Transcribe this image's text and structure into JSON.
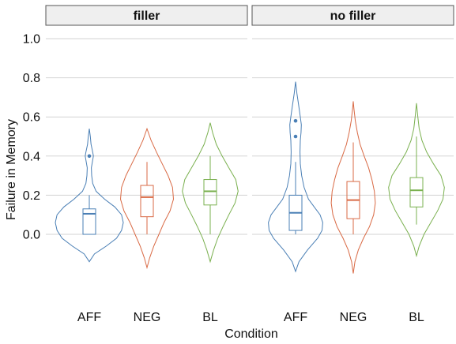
{
  "chart_data": {
    "type": "violin",
    "xlabel": "Condition",
    "ylabel": "Failure in Memory",
    "ylim": [
      -0.2,
      1.05
    ],
    "yticks": [
      0.0,
      0.2,
      0.4,
      0.6,
      0.8,
      1.0
    ],
    "ytick_labels": [
      "0.0",
      "0.2",
      "0.4",
      "0.6",
      "0.8",
      "1.0"
    ],
    "grid": true,
    "series_colors": {
      "AFF": "#4a7fb5",
      "NEG": "#d96a45",
      "BL": "#7ab04f"
    },
    "panels": [
      {
        "title": "filler",
        "groups": [
          {
            "category": "AFF",
            "box": {
              "min": 0.0,
              "q1": 0.0,
              "median": 0.105,
              "q3": 0.13,
              "max": 0.2
            },
            "outliers": [
              0.4
            ],
            "violin": [
              [
                -0.14,
                0
              ],
              [
                -0.1,
                0.15
              ],
              [
                -0.06,
                0.5
              ],
              [
                -0.02,
                0.8
              ],
              [
                0.02,
                0.95
              ],
              [
                0.06,
                1
              ],
              [
                0.1,
                0.95
              ],
              [
                0.14,
                0.75
              ],
              [
                0.18,
                0.45
              ],
              [
                0.22,
                0.2
              ],
              [
                0.26,
                0.1
              ],
              [
                0.3,
                0.07
              ],
              [
                0.34,
                0.06
              ],
              [
                0.38,
                0.1
              ],
              [
                0.4,
                0.12
              ],
              [
                0.42,
                0.1
              ],
              [
                0.46,
                0.05
              ],
              [
                0.5,
                0.03
              ],
              [
                0.54,
                0
              ]
            ]
          },
          {
            "category": "NEG",
            "box": {
              "min": 0.0,
              "q1": 0.09,
              "median": 0.19,
              "q3": 0.25,
              "max": 0.37
            },
            "outliers": [],
            "violin": [
              [
                -0.17,
                0
              ],
              [
                -0.12,
                0.08
              ],
              [
                -0.06,
                0.2
              ],
              [
                0.0,
                0.35
              ],
              [
                0.06,
                0.5
              ],
              [
                0.12,
                0.68
              ],
              [
                0.18,
                0.78
              ],
              [
                0.24,
                0.75
              ],
              [
                0.3,
                0.62
              ],
              [
                0.36,
                0.45
              ],
              [
                0.42,
                0.28
              ],
              [
                0.48,
                0.12
              ],
              [
                0.54,
                0
              ]
            ]
          },
          {
            "category": "BL",
            "box": {
              "min": 0.0,
              "q1": 0.15,
              "median": 0.22,
              "q3": 0.28,
              "max": 0.4
            },
            "outliers": [],
            "violin": [
              [
                -0.14,
                0
              ],
              [
                -0.08,
                0.1
              ],
              [
                -0.02,
                0.22
              ],
              [
                0.04,
                0.38
              ],
              [
                0.1,
                0.55
              ],
              [
                0.16,
                0.73
              ],
              [
                0.22,
                0.82
              ],
              [
                0.28,
                0.75
              ],
              [
                0.34,
                0.55
              ],
              [
                0.4,
                0.35
              ],
              [
                0.46,
                0.18
              ],
              [
                0.52,
                0.07
              ],
              [
                0.57,
                0
              ]
            ]
          }
        ]
      },
      {
        "title": "no filler",
        "groups": [
          {
            "category": "AFF",
            "box": {
              "min": 0.0,
              "q1": 0.02,
              "median": 0.11,
              "q3": 0.2,
              "max": 0.37
            },
            "outliers": [
              0.5,
              0.58
            ],
            "violin": [
              [
                -0.19,
                0
              ],
              [
                -0.14,
                0.1
              ],
              [
                -0.08,
                0.35
              ],
              [
                -0.02,
                0.65
              ],
              [
                0.02,
                0.78
              ],
              [
                0.06,
                0.8
              ],
              [
                0.1,
                0.72
              ],
              [
                0.14,
                0.55
              ],
              [
                0.18,
                0.38
              ],
              [
                0.24,
                0.25
              ],
              [
                0.3,
                0.18
              ],
              [
                0.36,
                0.14
              ],
              [
                0.42,
                0.13
              ],
              [
                0.48,
                0.14
              ],
              [
                0.52,
                0.16
              ],
              [
                0.56,
                0.17
              ],
              [
                0.6,
                0.14
              ],
              [
                0.66,
                0.09
              ],
              [
                0.72,
                0.04
              ],
              [
                0.78,
                0
              ]
            ]
          },
          {
            "category": "NEG",
            "box": {
              "min": 0.0,
              "q1": 0.08,
              "median": 0.175,
              "q3": 0.27,
              "max": 0.47
            },
            "outliers": [],
            "violin": [
              [
                -0.2,
                0
              ],
              [
                -0.14,
                0.05
              ],
              [
                -0.08,
                0.15
              ],
              [
                -0.02,
                0.3
              ],
              [
                0.04,
                0.48
              ],
              [
                0.1,
                0.6
              ],
              [
                0.16,
                0.65
              ],
              [
                0.22,
                0.62
              ],
              [
                0.28,
                0.55
              ],
              [
                0.34,
                0.45
              ],
              [
                0.4,
                0.32
              ],
              [
                0.46,
                0.2
              ],
              [
                0.52,
                0.12
              ],
              [
                0.58,
                0.06
              ],
              [
                0.64,
                0.02
              ],
              [
                0.68,
                0
              ]
            ]
          },
          {
            "category": "BL",
            "box": {
              "min": 0.05,
              "q1": 0.14,
              "median": 0.225,
              "q3": 0.29,
              "max": 0.5
            },
            "outliers": [],
            "violin": [
              [
                -0.11,
                0
              ],
              [
                -0.06,
                0.08
              ],
              [
                0.0,
                0.22
              ],
              [
                0.06,
                0.42
              ],
              [
                0.12,
                0.62
              ],
              [
                0.18,
                0.78
              ],
              [
                0.24,
                0.82
              ],
              [
                0.3,
                0.72
              ],
              [
                0.36,
                0.5
              ],
              [
                0.42,
                0.3
              ],
              [
                0.48,
                0.16
              ],
              [
                0.54,
                0.08
              ],
              [
                0.6,
                0.04
              ],
              [
                0.67,
                0
              ]
            ]
          }
        ]
      }
    ]
  }
}
